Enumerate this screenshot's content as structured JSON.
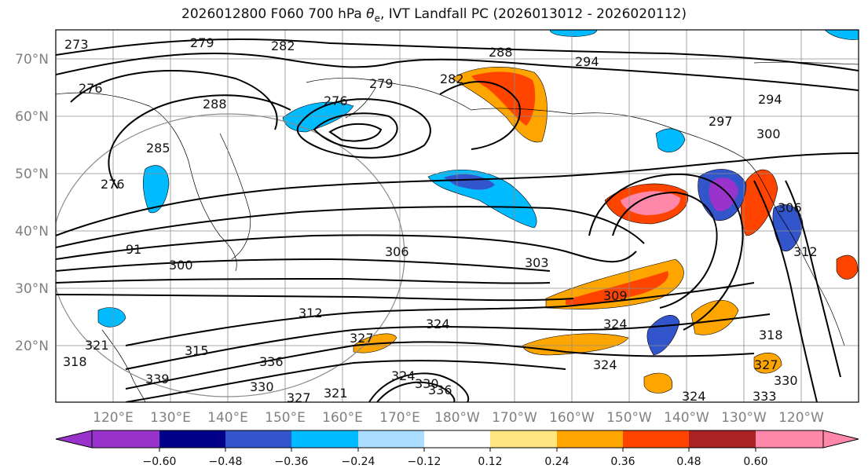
{
  "title": {
    "prefix": "2026012800 F060 700 hPa ",
    "symbol": "θ",
    "subscript": "e",
    "suffix": ", IVT Landfall PC (2026013012 - 2026020112)"
  },
  "map": {
    "projection": "PlateCarree",
    "extent": {
      "lon_min": 110,
      "lon_max": 250,
      "lat_min": 10,
      "lat_max": 75
    },
    "lat_ticks": [
      "20°N",
      "30°N",
      "40°N",
      "50°N",
      "60°N",
      "70°N"
    ],
    "lon_ticks": [
      "120°E",
      "130°E",
      "140°E",
      "150°E",
      "160°E",
      "170°E",
      "180°W",
      "170°W",
      "160°W",
      "150°W",
      "140°W",
      "130°W",
      "120°W"
    ],
    "gridlines": true,
    "contour_color": "#000000",
    "contour_labels": [
      "273",
      "279",
      "282",
      "288",
      "294",
      "276",
      "288",
      "279",
      "276",
      "282",
      "285",
      "276",
      "294",
      "297",
      "300",
      "306",
      "91",
      "300",
      "306",
      "303",
      "309",
      "312",
      "312",
      "315",
      "324",
      "327",
      "324",
      "336",
      "339",
      "330",
      "327",
      "321",
      "324",
      "330",
      "336",
      "324",
      "318",
      "321",
      "327",
      "330",
      "333",
      "324",
      "318"
    ]
  },
  "colorbar": {
    "ticks": [
      "−0.60",
      "−0.48",
      "−0.36",
      "−0.24",
      "−0.12",
      "0.12",
      "0.24",
      "0.36",
      "0.48",
      "0.60"
    ],
    "colors": [
      "#9933cc",
      "#000088",
      "#3355cc",
      "#00bbff",
      "#aaddff",
      "#ffffff",
      "#ffe680",
      "#ffa500",
      "#ff4400",
      "#aa2222",
      "#ff88aa"
    ],
    "extend": "both"
  }
}
